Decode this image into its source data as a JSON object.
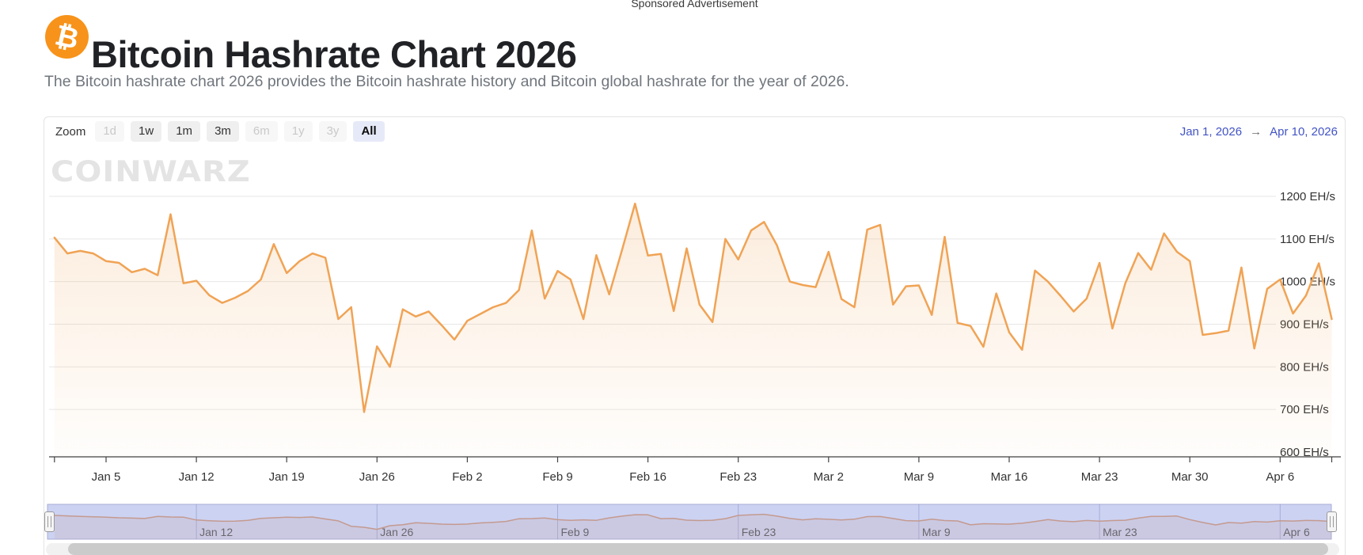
{
  "page": {
    "sponsored_label": "Sponsored Advertisement",
    "title": "Bitcoin Hashrate Chart 2026",
    "subtitle": "The Bitcoin hashrate chart 2026 provides the Bitcoin hashrate history and Bitcoin global hashrate for the year of 2026.",
    "bitcoin_symbol": "₿"
  },
  "toolbar": {
    "zoom_label": "Zoom",
    "buttons": [
      {
        "label": "1d",
        "state": "disabled"
      },
      {
        "label": "1w",
        "state": "enabled"
      },
      {
        "label": "1m",
        "state": "enabled"
      },
      {
        "label": "3m",
        "state": "enabled"
      },
      {
        "label": "6m",
        "state": "disabled"
      },
      {
        "label": "1y",
        "state": "disabled"
      },
      {
        "label": "3y",
        "state": "disabled"
      },
      {
        "label": "All",
        "state": "selected"
      }
    ],
    "date_from": "Jan 1, 2026",
    "date_arrow": "→",
    "date_to": "Apr 10, 2026"
  },
  "watermark": "CoinWarz",
  "chart_data": {
    "type": "area",
    "title": "Bitcoin Hashrate Chart 2026",
    "xlabel": "",
    "ylabel": "EH/s",
    "x_start": "Jan 1, 2026",
    "x_end": "Apr 10, 2026",
    "frequency": "daily",
    "grid": true,
    "legend": false,
    "ylim": [
      600,
      1200
    ],
    "y_tick_values": [
      600,
      700,
      800,
      900,
      1000,
      1100,
      1200
    ],
    "y_tick_labels": [
      "600 EH/s",
      "700 EH/s",
      "800 EH/s",
      "900 EH/s",
      "1000 EH/s",
      "1100 EH/s",
      "1200 EH/s"
    ],
    "x_tick_labels": [
      "Jan 5",
      "Jan 12",
      "Jan 19",
      "Jan 26",
      "Feb 2",
      "Feb 9",
      "Feb 16",
      "Feb 23",
      "Mar 2",
      "Mar 9",
      "Mar 16",
      "Mar 23",
      "Mar 30",
      "Apr 6"
    ],
    "x_tick_day_indices": [
      4,
      11,
      18,
      25,
      32,
      39,
      46,
      53,
      60,
      67,
      74,
      81,
      88,
      95
    ],
    "series": [
      {
        "name": "Bitcoin Hashrate",
        "unit": "EH/s",
        "color": "#f0a355",
        "values": [
          1103,
          1066,
          1072,
          1066,
          1048,
          1044,
          1022,
          1030,
          1015,
          1158,
          996,
          1002,
          968,
          950,
          962,
          978,
          1005,
          1088,
          1020,
          1048,
          1066,
          1056,
          912,
          940,
          694,
          848,
          800,
          935,
          918,
          930,
          898,
          864,
          908,
          924,
          940,
          950,
          980,
          1120,
          960,
          1025,
          1005,
          912,
          1062,
          970,
          1075,
          1183,
          1061,
          1065,
          931,
          1078,
          946,
          905,
          1100,
          1052,
          1120,
          1140,
          1085,
          1000,
          992,
          987,
          1070,
          959,
          940,
          1122,
          1133,
          946,
          989,
          991,
          922,
          1105,
          903,
          896,
          847,
          972,
          881,
          840,
          1026,
          1000,
          966,
          930,
          960,
          1044,
          890,
          996,
          1067,
          1028,
          1113,
          1070,
          1048,
          875,
          879,
          885,
          1033,
          843,
          983,
          1005,
          925,
          967,
          1043,
          912
        ]
      }
    ]
  },
  "navigator": {
    "x_labels": [
      "Jan 12",
      "Jan 26",
      "Feb 9",
      "Feb 23",
      "Mar 9",
      "Mar 23",
      "Apr 6"
    ],
    "x_label_day_indices": [
      11,
      25,
      39,
      53,
      67,
      81,
      95
    ],
    "mask_color": "#ccd2f2",
    "outline_color": "#a9aed6",
    "line_color": "#c49a8f"
  },
  "colors": {
    "accent_orange": "#f0a355",
    "bitcoin_orange": "#f7931a",
    "link_blue": "#4254c5",
    "selected_button_bg": "#e6eaf8",
    "grid_line": "#e7e7e7",
    "axis_line": "#424242"
  }
}
